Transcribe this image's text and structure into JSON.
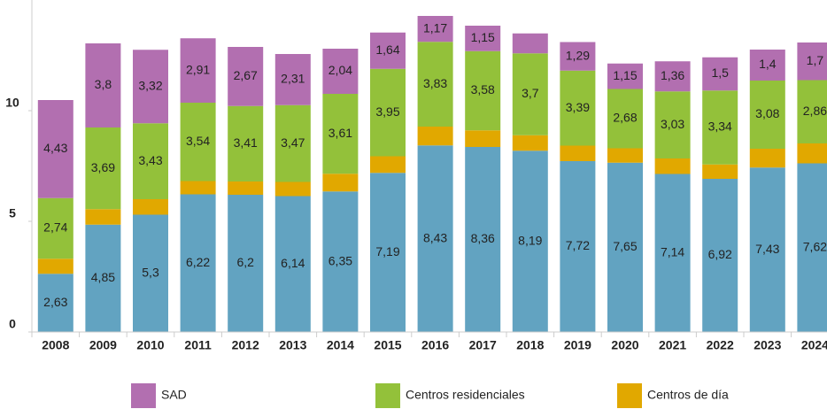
{
  "chart_data": {
    "type": "stacked_bar",
    "categories": [
      "2008",
      "2009",
      "2010",
      "2011",
      "2012",
      "2013",
      "2014",
      "2015",
      "2016",
      "2017",
      "2018",
      "2019",
      "2020",
      "2021",
      "2022",
      "2023",
      "2024"
    ],
    "series": [
      {
        "color": "#62a3c1",
        "values": [
          2.63,
          4.85,
          5.3,
          6.22,
          6.2,
          6.14,
          6.35,
          7.19,
          8.43,
          8.36,
          8.19,
          7.72,
          7.65,
          7.14,
          6.92,
          7.43,
          7.62
        ],
        "value_labels": [
          "2,63",
          "4,85",
          "5,3",
          "6,22",
          "6,2",
          "6,14",
          "6,35",
          "7,19",
          "8,43",
          "8,36",
          "8,19",
          "7,72",
          "7,65",
          "7,14",
          "6,92",
          "7,43",
          "7,62"
        ]
      },
      {
        "name": "Centros de día",
        "color": "#e1a800",
        "values": [
          0.68,
          0.7,
          0.7,
          0.6,
          0.6,
          0.64,
          0.8,
          0.75,
          0.85,
          0.75,
          0.7,
          0.7,
          0.65,
          0.7,
          0.65,
          0.85,
          0.9
        ]
      },
      {
        "name": "Centros residenciales",
        "color": "#93c13a",
        "values": [
          2.74,
          3.69,
          3.43,
          3.54,
          3.41,
          3.47,
          3.61,
          3.95,
          3.83,
          3.58,
          3.7,
          3.39,
          2.68,
          3.03,
          3.34,
          3.08,
          2.86
        ],
        "value_labels": [
          "2,74",
          "3,69",
          "3,43",
          "3,54",
          "3,41",
          "3,47",
          "3,61",
          "3,95",
          "3,83",
          "3,58",
          "3,7",
          "3,39",
          "2,68",
          "3,03",
          "3,34",
          "3,08",
          "2,86"
        ]
      },
      {
        "name": "SAD",
        "color": "#b26fb0",
        "values": [
          4.43,
          3.8,
          3.32,
          2.91,
          2.67,
          2.31,
          2.04,
          1.64,
          1.17,
          1.15,
          0.9,
          1.29,
          1.15,
          1.36,
          1.5,
          1.4,
          1.7
        ],
        "value_labels": [
          "4,43",
          "3,8",
          "3,32",
          "2,91",
          "2,67",
          "2,31",
          "2,04",
          "1,64",
          "1,17",
          "1,15",
          null,
          "1,29",
          "1,15",
          "1,36",
          "1,5",
          "1,4",
          "1,7"
        ]
      }
    ],
    "ylim": [
      0,
      15
    ],
    "yticks": [
      0,
      5,
      10
    ]
  }
}
